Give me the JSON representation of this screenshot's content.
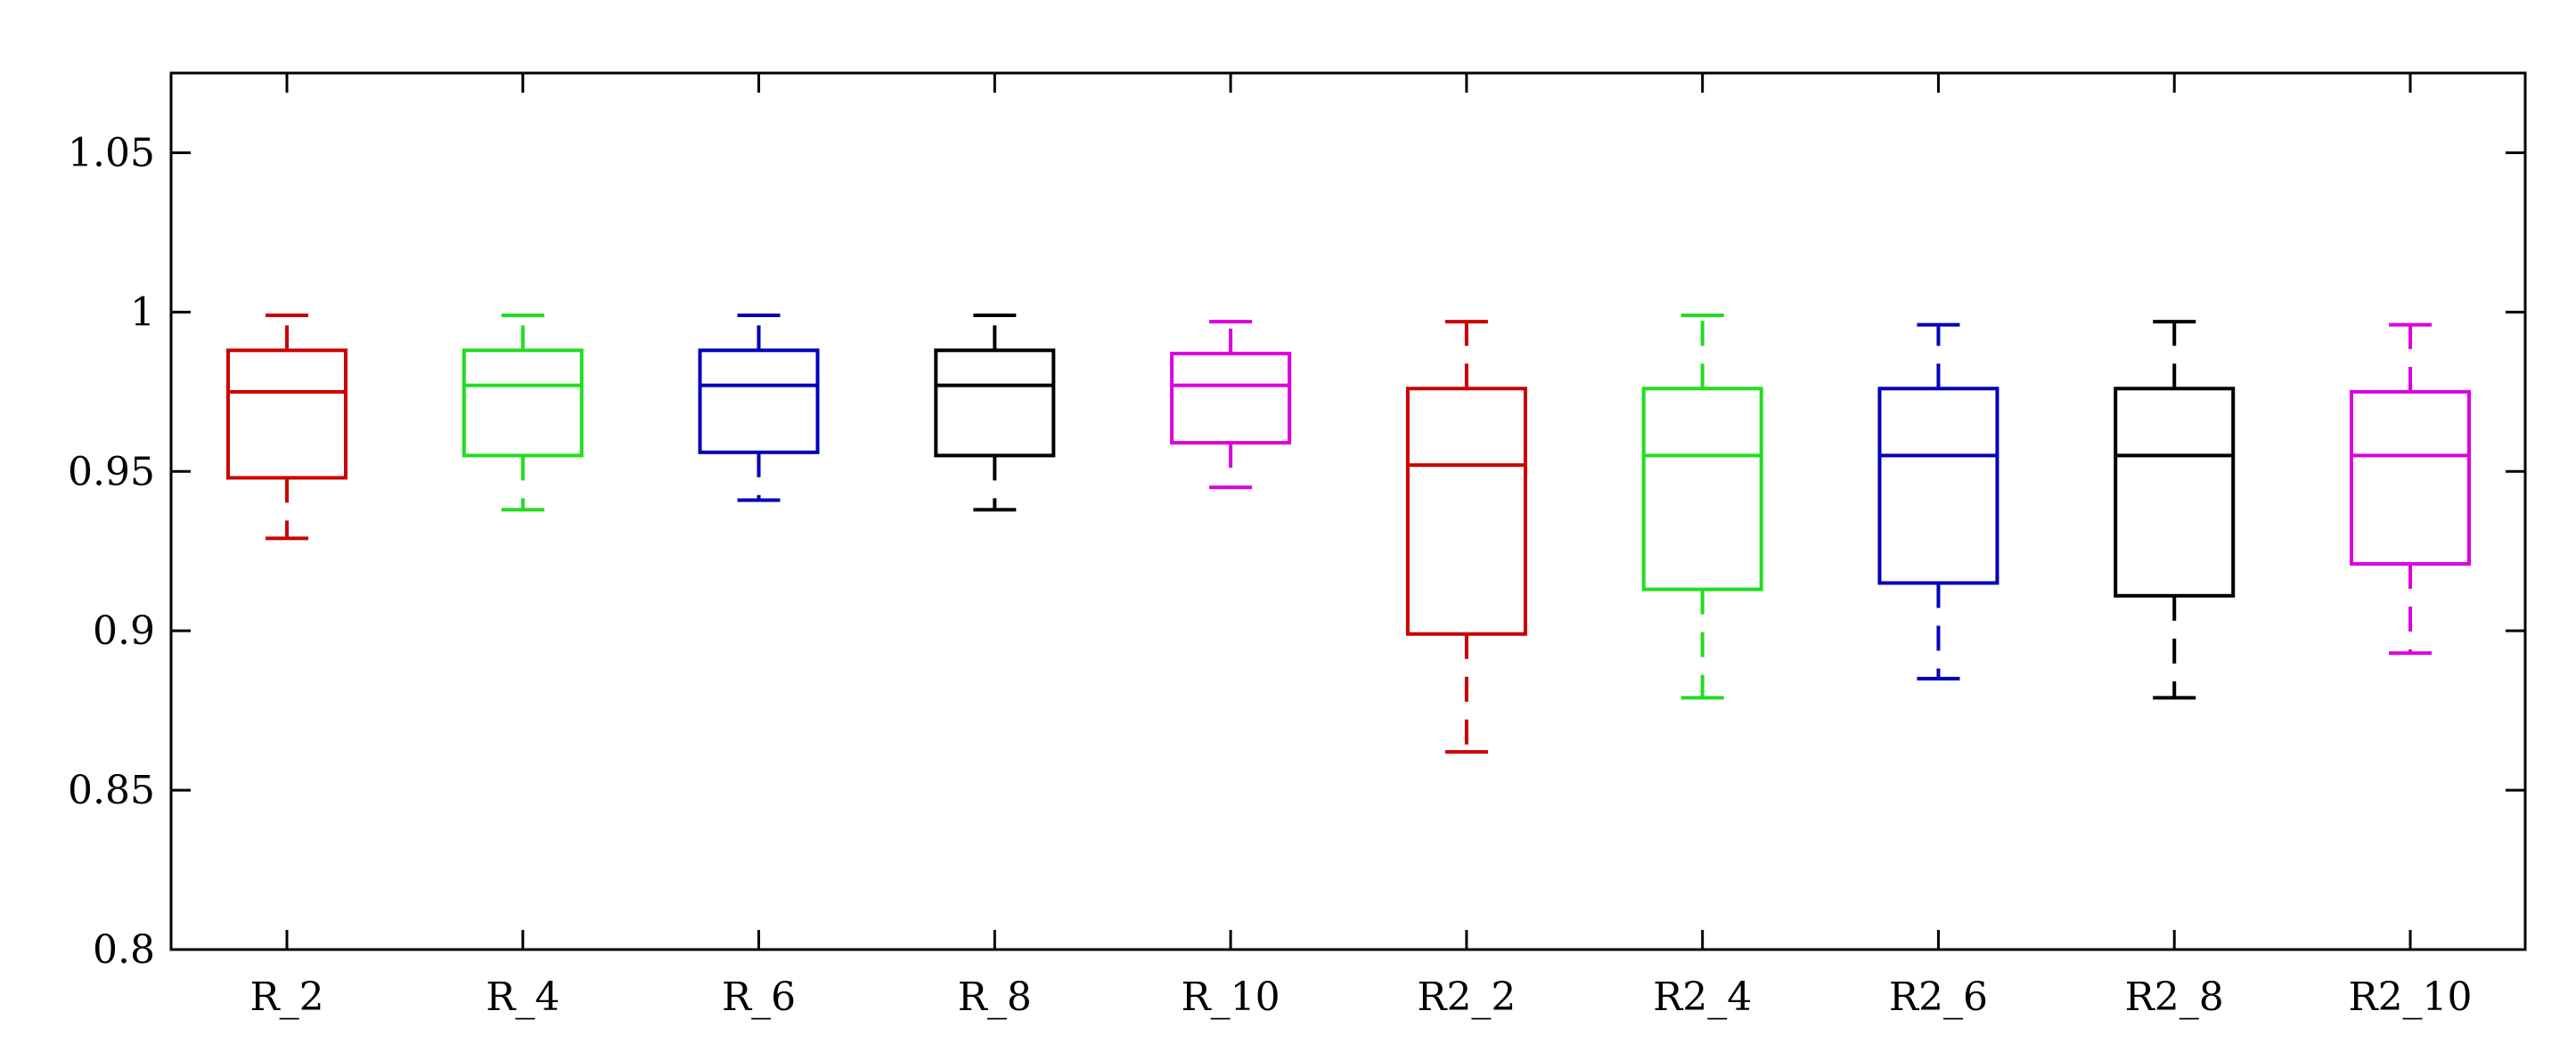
{
  "chart_data": {
    "type": "box",
    "title": "",
    "xlabel": "",
    "ylabel": "",
    "ylim": [
      0.8,
      1.075
    ],
    "yticks": [
      0.8,
      0.85,
      0.9,
      0.95,
      1,
      1.05
    ],
    "ytick_labels": [
      "0.8",
      "0.85",
      "0.9",
      "0.95",
      "1",
      "1.05"
    ],
    "grid": false,
    "legend": "none",
    "categories": [
      "R_2",
      "R_4",
      "R_6",
      "R_8",
      "R_10",
      "R2_2",
      "R2_4",
      "R2_6",
      "R2_8",
      "R2_10"
    ],
    "series": [
      {
        "category": "R_2",
        "color": "#cc0000",
        "min": 0.929,
        "q1": 0.948,
        "median": 0.975,
        "q3": 0.988,
        "max": 0.999
      },
      {
        "category": "R_4",
        "color": "#22dd22",
        "min": 0.938,
        "q1": 0.955,
        "median": 0.977,
        "q3": 0.988,
        "max": 0.999
      },
      {
        "category": "R_6",
        "color": "#0000bb",
        "min": 0.941,
        "q1": 0.956,
        "median": 0.977,
        "q3": 0.988,
        "max": 0.999
      },
      {
        "category": "R_8",
        "color": "#000000",
        "min": 0.938,
        "q1": 0.955,
        "median": 0.977,
        "q3": 0.988,
        "max": 0.999
      },
      {
        "category": "R_10",
        "color": "#dd00dd",
        "min": 0.945,
        "q1": 0.959,
        "median": 0.977,
        "q3": 0.987,
        "max": 0.997
      },
      {
        "category": "R2_2",
        "color": "#cc0000",
        "min": 0.862,
        "q1": 0.899,
        "median": 0.952,
        "q3": 0.976,
        "max": 0.997
      },
      {
        "category": "R2_4",
        "color": "#22dd22",
        "min": 0.879,
        "q1": 0.913,
        "median": 0.955,
        "q3": 0.976,
        "max": 0.999
      },
      {
        "category": "R2_6",
        "color": "#0000bb",
        "min": 0.885,
        "q1": 0.915,
        "median": 0.955,
        "q3": 0.976,
        "max": 0.996
      },
      {
        "category": "R2_8",
        "color": "#000000",
        "min": 0.879,
        "q1": 0.911,
        "median": 0.955,
        "q3": 0.976,
        "max": 0.997
      },
      {
        "category": "R2_10",
        "color": "#dd00dd",
        "min": 0.893,
        "q1": 0.921,
        "median": 0.955,
        "q3": 0.975,
        "max": 0.996
      }
    ]
  }
}
